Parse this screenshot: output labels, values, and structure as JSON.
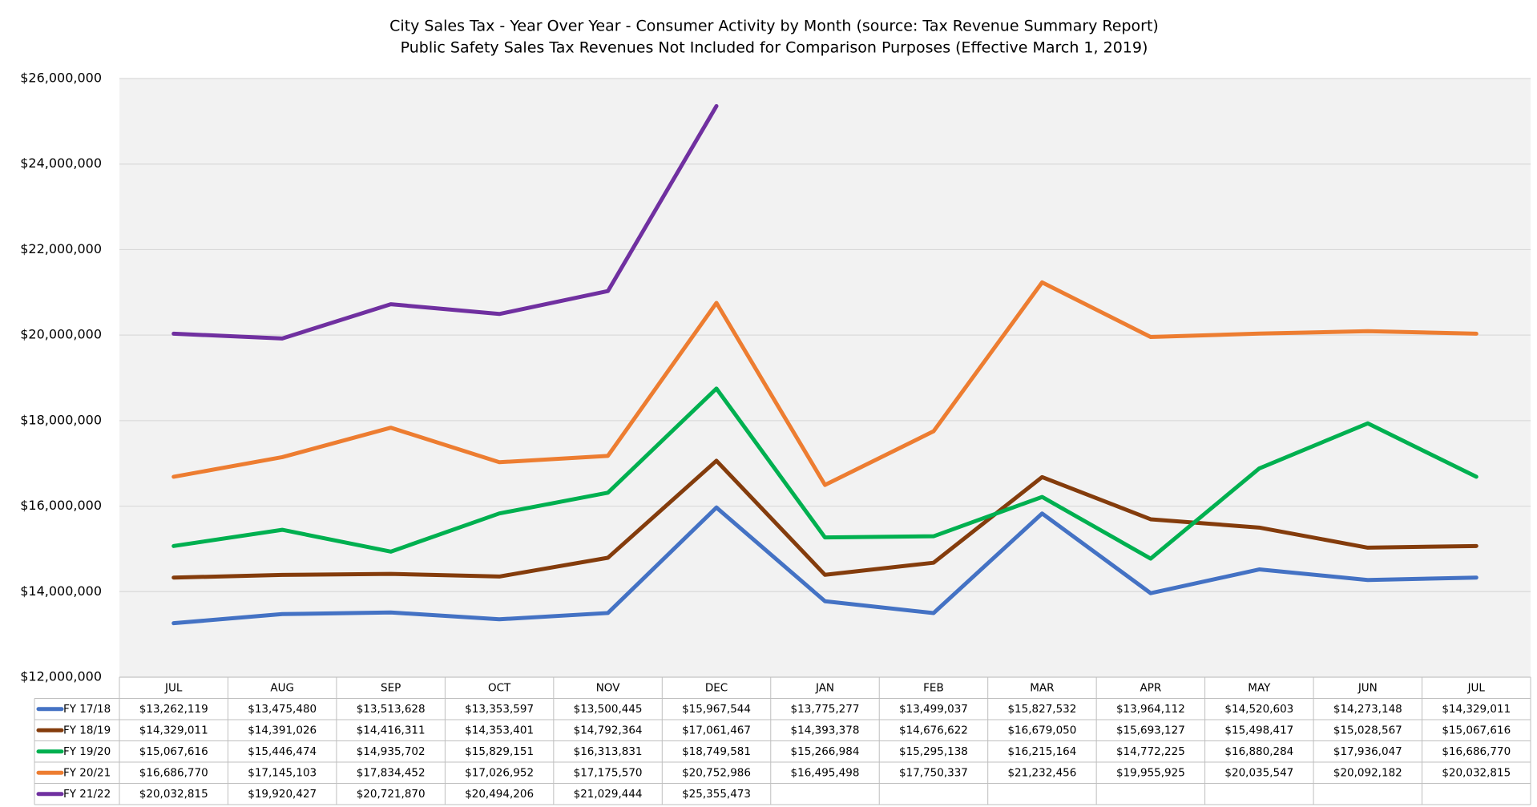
{
  "chart_data": {
    "type": "line",
    "title": "City Sales Tax - Year Over Year - Consumer Activity by Month (source: Tax Revenue Summary Report)",
    "subtitle": "Public Safety Sales Tax Revenues Not Included for Comparison Purposes (Effective March 1, 2019)",
    "categories": [
      "JUL",
      "AUG",
      "SEP",
      "OCT",
      "NOV",
      "DEC",
      "JAN",
      "FEB",
      "MAR",
      "APR",
      "MAY",
      "JUN",
      "JUL"
    ],
    "ylim": [
      12000000,
      26000000
    ],
    "yticks": [
      {
        "value": 12000000,
        "label": "$12,000,000"
      },
      {
        "value": 14000000,
        "label": "$14,000,000"
      },
      {
        "value": 16000000,
        "label": "$16,000,000"
      },
      {
        "value": 18000000,
        "label": "$18,000,000"
      },
      {
        "value": 20000000,
        "label": "$20,000,000"
      },
      {
        "value": 22000000,
        "label": "$22,000,000"
      },
      {
        "value": 24000000,
        "label": "$24,000,000"
      },
      {
        "value": 26000000,
        "label": "$26,000,000"
      }
    ],
    "grid": true,
    "series": [
      {
        "name": "FY 17/18",
        "color": "#4472c4",
        "values": [
          13262119,
          13475480,
          13513628,
          13353597,
          13500445,
          15967544,
          13775277,
          13499037,
          15827532,
          13964112,
          14520603,
          14273148,
          14329011
        ],
        "value_labels": [
          "$13,262,119",
          "$13,475,480",
          "$13,513,628",
          "$13,353,597",
          "$13,500,445",
          "$15,967,544",
          "$13,775,277",
          "$13,499,037",
          "$15,827,532",
          "$13,964,112",
          "$14,520,603",
          "$14,273,148",
          "$14,329,011"
        ]
      },
      {
        "name": "FY 18/19",
        "color": "#843c0c",
        "values": [
          14329011,
          14391026,
          14416311,
          14353401,
          14792364,
          17061467,
          14393378,
          14676622,
          16679050,
          15693127,
          15498417,
          15028567,
          15067616
        ],
        "value_labels": [
          "$14,329,011",
          "$14,391,026",
          "$14,416,311",
          "$14,353,401",
          "$14,792,364",
          "$17,061,467",
          "$14,393,378",
          "$14,676,622",
          "$16,679,050",
          "$15,693,127",
          "$15,498,417",
          "$15,028,567",
          "$15,067,616"
        ]
      },
      {
        "name": "FY 19/20",
        "color": "#00b050",
        "values": [
          15067616,
          15446474,
          14935702,
          15829151,
          16313831,
          18749581,
          15266984,
          15295138,
          16215164,
          14772225,
          16880284,
          17936047,
          16686770
        ],
        "value_labels": [
          "$15,067,616",
          "$15,446,474",
          "$14,935,702",
          "$15,829,151",
          "$16,313,831",
          "$18,749,581",
          "$15,266,984",
          "$15,295,138",
          "$16,215,164",
          "$14,772,225",
          "$16,880,284",
          "$17,936,047",
          "$16,686,770"
        ]
      },
      {
        "name": "FY 20/21",
        "color": "#ed7d31",
        "values": [
          16686770,
          17145103,
          17834452,
          17026952,
          17175570,
          20752986,
          16495498,
          17750337,
          21232456,
          19955925,
          20035547,
          20092182,
          20032815
        ],
        "value_labels": [
          "$16,686,770",
          "$17,145,103",
          "$17,834,452",
          "$17,026,952",
          "$17,175,570",
          "$20,752,986",
          "$16,495,498",
          "$17,750,337",
          "$21,232,456",
          "$19,955,925",
          "$20,035,547",
          "$20,092,182",
          "$20,032,815"
        ]
      },
      {
        "name": "FY 21/22",
        "color": "#7030a0",
        "values": [
          20032815,
          19920427,
          20721870,
          20494206,
          21029444,
          25355473,
          null,
          null,
          null,
          null,
          null,
          null,
          null
        ],
        "value_labels": [
          "$20,032,815",
          "$19,920,427",
          "$20,721,870",
          "$20,494,206",
          "$21,029,444",
          "$25,355,473",
          null,
          null,
          null,
          null,
          null,
          null,
          null
        ]
      }
    ]
  }
}
